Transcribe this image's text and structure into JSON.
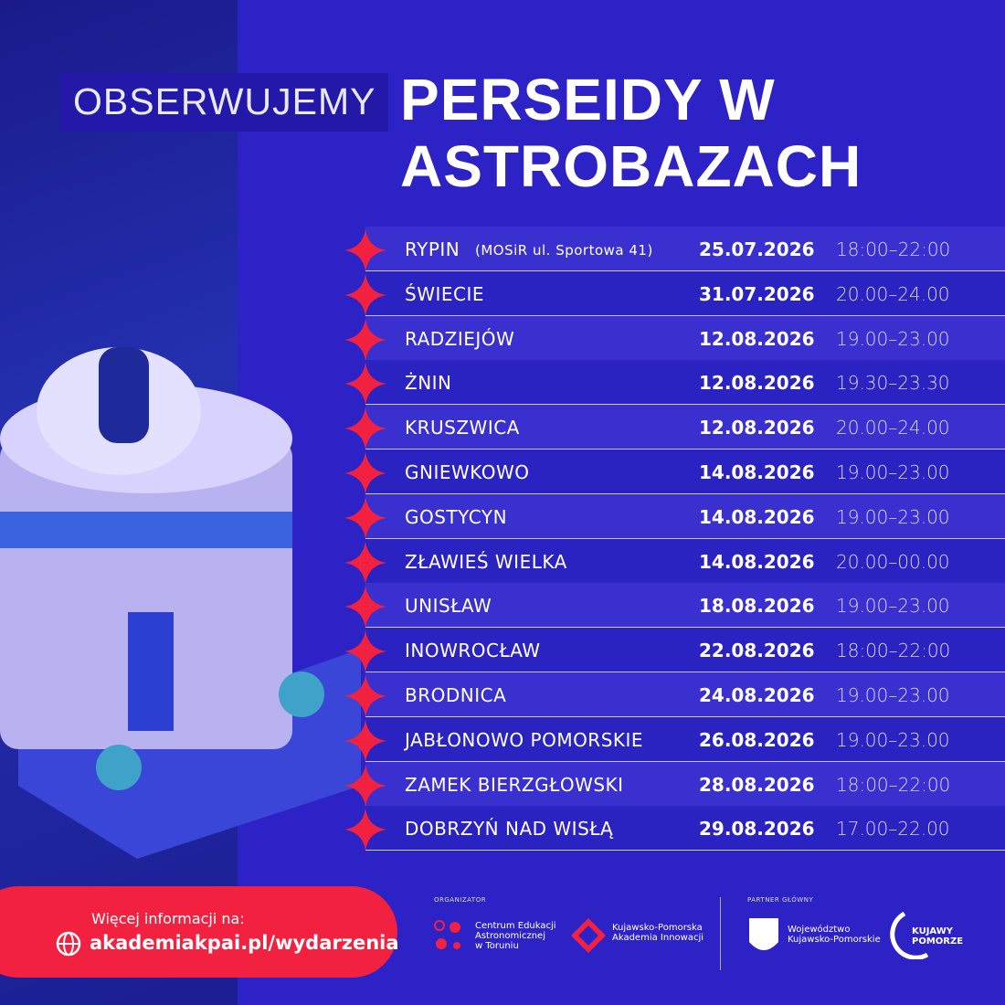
{
  "header": {
    "prefix": "OBSERWUJEMY",
    "title_line1": "PERSEIDY W",
    "title_line2": "ASTROBAZACH"
  },
  "events": [
    {
      "place": "RYPIN",
      "note": "(MOSiR ul. Sportowa 41)",
      "date": "25.07.2026",
      "time": "18:00–22:00"
    },
    {
      "place": "ŚWIECIE",
      "date": "31.07.2026",
      "time": "20.00–24.00"
    },
    {
      "place": "RADZIEJÓW",
      "date": "12.08.2026",
      "time": "19.00–23.00"
    },
    {
      "place": "ŻNIN",
      "date": "12.08.2026",
      "time": "19.30–23.30"
    },
    {
      "place": "KRUSZWICA",
      "date": "12.08.2026",
      "time": "20.00–24.00"
    },
    {
      "place": "GNIEWKOWO",
      "date": "14.08.2026",
      "time": "19.00–23.00"
    },
    {
      "place": "GOSTYCYN",
      "date": "14.08.2026",
      "time": "19.00–23.00"
    },
    {
      "place": "ZŁAWIEŚ WIELKA",
      "date": "14.08.2026",
      "time": "20.00–00.00"
    },
    {
      "place": "UNISŁAW",
      "date": "18.08.2026",
      "time": "19.00–23.00"
    },
    {
      "place": "INOWROCŁAW",
      "date": "22.08.2026",
      "time": "18:00–22:00"
    },
    {
      "place": "BRODNICA",
      "date": "24.08.2026",
      "time": "19.00–23.00"
    },
    {
      "place": "JABŁONOWO POMORSKIE",
      "date": "26.08.2026",
      "time": "19.00–23.00"
    },
    {
      "place": "ZAMEK BIERZGŁOWSKI",
      "date": "28.08.2026",
      "time": "18:00–22:00"
    },
    {
      "place": "DOBRZYŃ NAD WISŁĄ",
      "date": "29.08.2026",
      "time": "17.00–22.00"
    }
  ],
  "footer": {
    "info_label": "Więcej informacji na:",
    "link": "akademiakpai.pl/wydarzenia"
  },
  "logos": {
    "organizer_label": "ORGANIZATOR",
    "organizers": [
      [
        "Centrum Edukacji",
        "Astronomicznej",
        "w Toruniu"
      ],
      [
        "Kujawsko-Pomorska",
        "Akademia Innowacji"
      ]
    ],
    "partner_label": "PARTNER GŁÓWNY",
    "partners": [
      [
        "Województwo",
        "Kujawsko-Pomorskie"
      ],
      [
        "KUJAWY",
        "POMORZE"
      ]
    ]
  }
}
